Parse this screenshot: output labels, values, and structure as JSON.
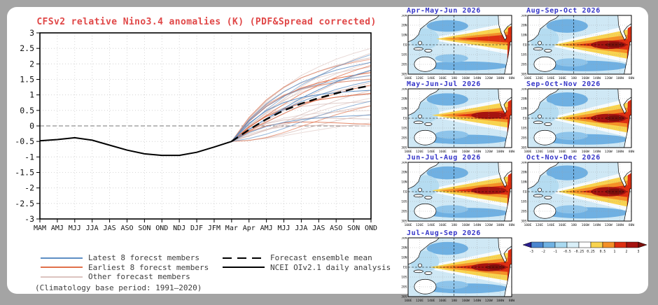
{
  "chart_data": {
    "type": "line",
    "title": "CFSv2 relative Nino3.4 anomalies (K) (PDF&Spread corrected)",
    "title_color": "#e04747",
    "categories": [
      "MAM",
      "AMJ",
      "MJJ",
      "JJA",
      "JAS",
      "ASO",
      "SON",
      "OND",
      "NDJ",
      "DJF",
      "JFM",
      "Mar",
      "Apr",
      "AMJ",
      "MJJ",
      "JJA",
      "JAS",
      "ASO",
      "SON",
      "OND"
    ],
    "ylim": [
      -3,
      3
    ],
    "ytick_labels": [
      "3",
      "2.5",
      "2",
      "1.5",
      "1",
      "0.5",
      "0",
      "-0.5",
      "-1",
      "-1.5",
      "-2",
      "-2.5",
      "-3"
    ],
    "grid": true,
    "observed": {
      "name": "NCEI OIv2.1 daily analysis",
      "color": "#000000",
      "values": [
        -0.48,
        -0.44,
        -0.38,
        -0.46,
        -0.62,
        -0.78,
        -0.9,
        -0.95,
        -0.95,
        -0.85,
        -0.68,
        -0.5
      ]
    },
    "forecast_start_index": 11,
    "forecast_start_value": -0.5,
    "ensemble_mean": {
      "name": "Forecast ensemble mean",
      "color": "#000000",
      "values": [
        -0.5,
        -0.12,
        0.22,
        0.5,
        0.72,
        0.9,
        1.05,
        1.2,
        1.3
      ]
    },
    "member_fractions": [
      0,
      0.22,
      0.4,
      0.55,
      0.68,
      0.78,
      0.87,
      0.94,
      1
    ],
    "groups": [
      {
        "name": "latest",
        "color": "#5e8fc4",
        "members": [
          {
            "end": 2.3,
            "bend": -0.1
          },
          {
            "end": 2.05,
            "bend": 0.2
          },
          {
            "end": 1.8,
            "bend": -0.2
          },
          {
            "end": 1.62,
            "bend": 0.3
          },
          {
            "end": 1.45,
            "bend": -0.05
          },
          {
            "end": 1.15,
            "bend": 0.35
          },
          {
            "end": 0.8,
            "bend": -0.3
          },
          {
            "end": 0.35,
            "bend": 0.15
          }
        ]
      },
      {
        "name": "earliest",
        "color": "#e1704a",
        "members": [
          {
            "end": 2.15,
            "bend": 0.3
          },
          {
            "end": 1.95,
            "bend": -0.15
          },
          {
            "end": 1.72,
            "bend": 0.25
          },
          {
            "end": 1.5,
            "bend": 0.4
          },
          {
            "end": 1.32,
            "bend": -0.1
          },
          {
            "end": 1.05,
            "bend": 0.2
          },
          {
            "end": 0.65,
            "bend": -0.35
          },
          {
            "end": 0.05,
            "bend": 0.3
          }
        ]
      },
      {
        "name": "other",
        "color": "#dbc3bf",
        "members": [
          {
            "end": 2.5,
            "bend": 0.1
          },
          {
            "end": 2.35,
            "bend": -0.2
          },
          {
            "end": 2.2,
            "bend": 0.25
          },
          {
            "end": 2.05,
            "bend": -0.1
          },
          {
            "end": 1.9,
            "bend": 0.3
          },
          {
            "end": 1.78,
            "bend": -0.25
          },
          {
            "end": 1.65,
            "bend": 0.15
          },
          {
            "end": 1.52,
            "bend": 0.35
          },
          {
            "end": 1.4,
            "bend": -0.15
          },
          {
            "end": 1.28,
            "bend": 0.2
          },
          {
            "end": 1.15,
            "bend": -0.3
          },
          {
            "end": 1.02,
            "bend": 0.25
          },
          {
            "end": 0.9,
            "bend": -0.2
          },
          {
            "end": 0.78,
            "bend": 0.3
          },
          {
            "end": 0.65,
            "bend": -0.1
          },
          {
            "end": 0.5,
            "bend": 0.2
          },
          {
            "end": 0.38,
            "bend": -0.25
          },
          {
            "end": 0.22,
            "bend": 0.3
          },
          {
            "end": 0.1,
            "bend": -0.15
          },
          {
            "end": 0.0,
            "bend": 0.2
          }
        ]
      }
    ]
  },
  "legend": {
    "items_left": [
      {
        "label": "Latest 8 forecst members",
        "color": "#5e8fc4",
        "style": "solid"
      },
      {
        "label": "Earliest 8 forecst members",
        "color": "#e1704a",
        "style": "solid"
      },
      {
        "label": "Other forecast members",
        "color": "#dbc3bf",
        "style": "solid"
      }
    ],
    "items_right": [
      {
        "label": "Forecast ensemble mean",
        "color": "#000000",
        "style": "dashed"
      },
      {
        "label": "NCEI OIv2.1 daily analysis",
        "color": "#000000",
        "style": "solid"
      }
    ],
    "footnote": "(Climatology base period: 1991–2020)"
  },
  "maps": {
    "title_color": "#3535c8",
    "ylabels": [
      "30N",
      "20N",
      "10N",
      "EQ",
      "10S",
      "20S",
      "30S"
    ],
    "xlabels": [
      "100E",
      "120E",
      "140E",
      "160E",
      "180",
      "160W",
      "140W",
      "120W",
      "100W",
      "80W"
    ],
    "panels": [
      {
        "title": "Apr-May-Jun 2026",
        "tip": 0.34,
        "yc": 0.4,
        "sp": 0.13,
        "core": 1,
        "nw": 0.4,
        "south": 0.5
      },
      {
        "title": "Aug-Sep-Oct 2026",
        "tip": 0.32,
        "yc": 0.5,
        "sp": 0.18,
        "core": 3,
        "nw": 0.7,
        "south": 0.8
      },
      {
        "title": "May-Jun-Jul 2026",
        "tip": 0.3,
        "yc": 0.45,
        "sp": 0.15,
        "core": 2,
        "nw": 0.5,
        "south": 0.6
      },
      {
        "title": "Sep-Oct-Nov 2026",
        "tip": 0.34,
        "yc": 0.5,
        "sp": 0.19,
        "core": 3,
        "nw": 0.8,
        "south": 0.8
      },
      {
        "title": "Jun-Jul-Aug 2026",
        "tip": 0.3,
        "yc": 0.48,
        "sp": 0.16,
        "core": 2,
        "nw": 0.6,
        "south": 0.7
      },
      {
        "title": "Oct-Nov-Dec 2026",
        "tip": 0.36,
        "yc": 0.5,
        "sp": 0.2,
        "core": 3,
        "nw": 0.9,
        "south": 0.9
      },
      {
        "title": "Jul-Aug-Sep 2026",
        "tip": 0.28,
        "yc": 0.5,
        "sp": 0.17,
        "core": 3,
        "nw": 0.6,
        "south": 0.7
      }
    ]
  },
  "colorbar": {
    "tick_labels": [
      "-3",
      "-2",
      "-1",
      "-0.5",
      "-0.25",
      "0.25",
      "0.5",
      "1",
      "2",
      "3"
    ],
    "segment_colors": [
      "#4a86cf",
      "#70b2e3",
      "#a9d9f0",
      "#d9eff8",
      "#ffffff",
      "#f8d34f",
      "#f49027",
      "#dd2f12",
      "#a61310"
    ],
    "left_arrow_color": "#2a1d8f",
    "right_arrow_color": "#7d0f0b"
  }
}
